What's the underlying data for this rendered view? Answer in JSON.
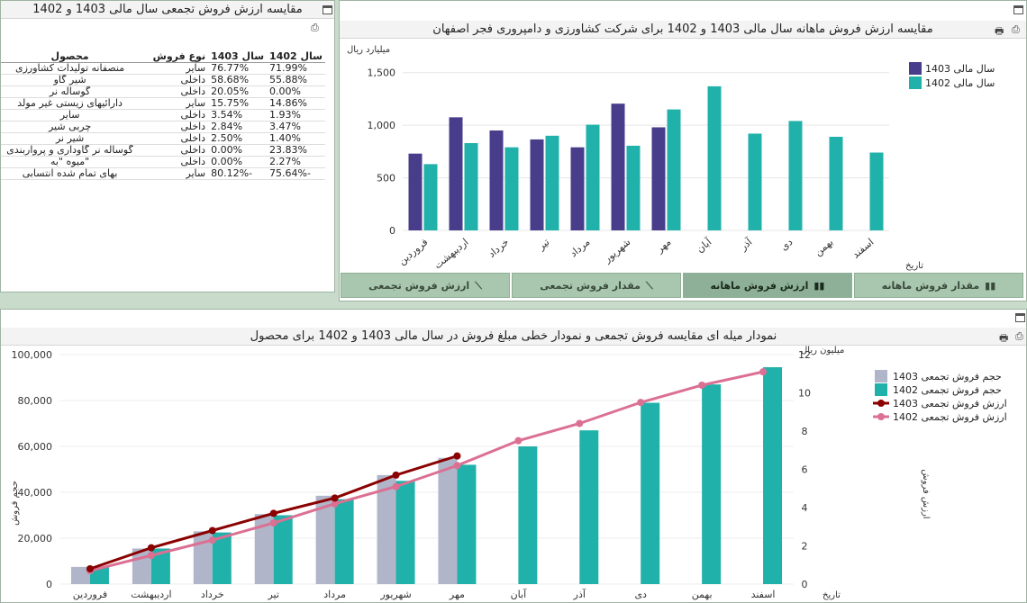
{
  "table_panel": {
    "title": "مقایسه ارزش فروش تجمعی سال مالی 1403 و 1402",
    "headers": {
      "y1402": "سال 1402",
      "y1403": "سال 1403",
      "type": "نوع فروش",
      "product": "محصول"
    },
    "rows": [
      {
        "y1402": "71.99%",
        "y1403": "76.77%",
        "type": "سایر",
        "product": "منصفانه تولیدات کشاورزی"
      },
      {
        "y1402": "55.88%",
        "y1403": "58.68%",
        "type": "داخلی",
        "product": "شیر گاو"
      },
      {
        "y1402": "0.00%",
        "y1403": "20.05%",
        "type": "داخلی",
        "product": "گوساله نر"
      },
      {
        "y1402": "14.86%",
        "y1403": "15.75%",
        "type": "سایر",
        "product": "دارائیهای زیستی غیر مولد"
      },
      {
        "y1402": "1.93%",
        "y1403": "3.54%",
        "type": "داخلی",
        "product": "سایر"
      },
      {
        "y1402": "3.47%",
        "y1403": "2.84%",
        "type": "داخلی",
        "product": "چربی شیر"
      },
      {
        "y1402": "1.40%",
        "y1403": "2.50%",
        "type": "داخلی",
        "product": "شیر نر"
      },
      {
        "y1402": "23.83%",
        "y1403": "0.00%",
        "type": "داخلی",
        "product": "گوساله نر گاوداری و پرواربندی"
      },
      {
        "y1402": "2.27%",
        "y1403": "0.00%",
        "type": "داخلی",
        "product": "\"میوه \"به"
      },
      {
        "y1402": "-75.64%",
        "y1403": "-80.12%",
        "type": "سایر",
        "product": "بهای تمام شده انتسابی"
      }
    ]
  },
  "tabs": [
    {
      "label": "مقدار فروش ماهانه",
      "icon": "bar-chart-icon",
      "active": false
    },
    {
      "label": "ارزش فروش ماهانه",
      "icon": "bar-chart-icon",
      "active": true
    },
    {
      "label": "مقدار فروش تجمعی",
      "icon": "line-chart-icon",
      "active": false
    },
    {
      "label": "ارزش فروش تجمعی",
      "icon": "line-chart-icon",
      "active": false
    }
  ],
  "colors": {
    "y1403": "#483d8b",
    "y1402": "#20b2aa",
    "vol1403": "#b0b5c9",
    "line1403": "#8b0000",
    "line1402": "#db7093"
  },
  "chart_data": [
    {
      "type": "bar",
      "title": "مقایسه ارزش فروش ماهانه سال مالی 1403 و 1402 برای شرکت کشاورزی و دامپروری فجر اصفهان",
      "ylabel": "میلیارد ریال",
      "xlabel": "تاریخ",
      "ylim": [
        0,
        1600
      ],
      "yticks": [
        "0",
        "500",
        "1,000",
        "1,500"
      ],
      "categories": [
        "فروردین",
        "اردیبهشت",
        "خرداد",
        "تیر",
        "مرداد",
        "شهریور",
        "مهر",
        "آبان",
        "آذر",
        "دی",
        "بهمن",
        "اسفند"
      ],
      "series": [
        {
          "name": "سال مالی 1403",
          "values": [
            730,
            1075,
            950,
            865,
            790,
            1205,
            980,
            null,
            null,
            null,
            null,
            null
          ]
        },
        {
          "name": "سال مالی 1402",
          "values": [
            630,
            830,
            790,
            900,
            1005,
            805,
            1150,
            1370,
            920,
            1040,
            890,
            740
          ]
        }
      ],
      "legend": "top-right",
      "grid": true
    },
    {
      "type": "bar",
      "title": "نمودار میله ای مقایسه فروش تجمعی و نمودار خطی مبلغ فروش در سال مالی 1403 و 1402 برای محصول",
      "ylabel": "حجم فروش",
      "y2label": "ارزش فروش",
      "y2unit": "میلیون ریال",
      "xlabel": "تاریخ",
      "ylim": [
        0,
        100000
      ],
      "y2lim": [
        0,
        12
      ],
      "yticks": [
        "0",
        "20,000",
        "40,000",
        "60,000",
        "80,000",
        "100,000"
      ],
      "y2ticks": [
        "0",
        "2",
        "4",
        "6",
        "8",
        "10",
        "12"
      ],
      "categories": [
        "فروردین",
        "اردیبهشت",
        "خرداد",
        "تیر",
        "مرداد",
        "شهریور",
        "مهر",
        "آبان",
        "آذر",
        "دی",
        "بهمن",
        "اسفند"
      ],
      "bar_series": [
        {
          "name": "حجم فروش تجمعی 1403",
          "values": [
            7500,
            15500,
            23000,
            30500,
            38500,
            47500,
            55000,
            null,
            null,
            null,
            null,
            null
          ]
        },
        {
          "name": "حجم فروش تجمعی 1402",
          "values": [
            7500,
            15500,
            22500,
            30000,
            37000,
            45000,
            52000,
            60000,
            67000,
            79000,
            87000,
            94500
          ]
        }
      ],
      "line_series": [
        {
          "name": "ارزش فروش تجمعی 1403",
          "values": [
            0.8,
            1.9,
            2.8,
            3.7,
            4.5,
            5.7,
            6.7,
            null,
            null,
            null,
            null,
            null
          ]
        },
        {
          "name": "ارزش فروش تجمعی 1402",
          "values": [
            0.7,
            1.5,
            2.3,
            3.2,
            4.2,
            5.1,
            6.2,
            7.5,
            8.4,
            9.5,
            10.4,
            11.1
          ]
        }
      ],
      "legend": "top-right",
      "grid": true
    }
  ]
}
